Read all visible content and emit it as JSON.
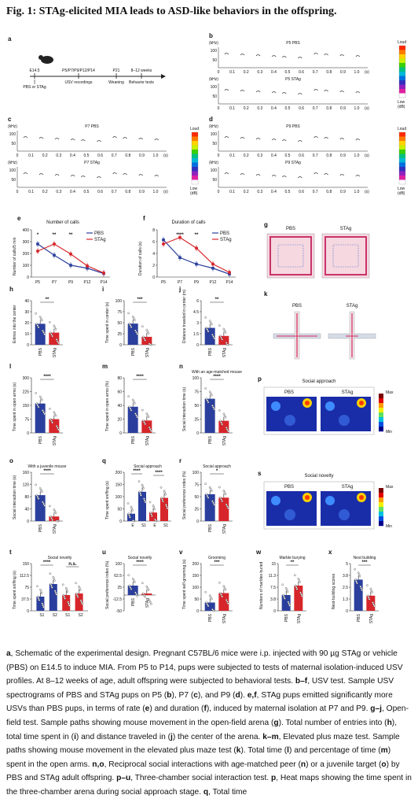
{
  "title": "Fig. 1: STAg-elicited MIA leads to ASD-like behaviors in the offspring.",
  "panels": {
    "a": {
      "label": "a",
      "timeline": [
        "E14.5",
        "P5/P7/P9/P12/P14",
        "P21",
        "8–12 weeks"
      ],
      "below": [
        "PBS or STAg",
        "USV recordings",
        "Weaning",
        "Behavior tests"
      ]
    },
    "b": {
      "label": "b",
      "top": "P5 PBS",
      "bottom": "P5 STAg"
    },
    "c": {
      "label": "c",
      "top": "P7 PBS",
      "bottom": "P7 STAg"
    },
    "d": {
      "label": "d",
      "top": "P9 PBS",
      "bottom": "P9 STAg"
    },
    "e": {
      "label": "e",
      "title": "Number of calls",
      "ylabel": "Number of calls/5 min"
    },
    "f": {
      "label": "f",
      "title": "Duration of calls",
      "ylabel": "Duration of calls (s)"
    },
    "g": {
      "label": "g",
      "left": "PBS",
      "right": "STAg"
    },
    "h": {
      "label": "h",
      "ylabel": "Entries into the center",
      "sig": "**"
    },
    "i": {
      "label": "i",
      "ylabel": "Time spent in center (s)",
      "sig": "***"
    },
    "j": {
      "label": "j",
      "ylabel": "Distance traveled in center (m)",
      "sig": "**"
    },
    "k": {
      "label": "k",
      "left": "PBS",
      "right": "STAg"
    },
    "l": {
      "label": "l",
      "ylabel": "Time spent in open arms (s)",
      "sig": "****"
    },
    "m": {
      "label": "m",
      "ylabel": "Time spent in open arms (%)",
      "sig": "****"
    },
    "n": {
      "label": "n",
      "title": "With an age-matched mouse",
      "ylabel": "Social interaction time (s)",
      "sig": "****"
    },
    "p": {
      "label": "p",
      "title": "Social approach",
      "left": "PBS",
      "right": "STAg",
      "max": "Max",
      "min": "Min"
    },
    "o": {
      "label": "o",
      "title": "With a juvenile mouse",
      "ylabel": "Social interaction time (s)",
      "sig": "****"
    },
    "q": {
      "label": "q",
      "title": "Social approach",
      "ylabel": "Time spent sniffing (s)",
      "sig1": "****",
      "sig2": "****"
    },
    "r": {
      "label": "r",
      "title": "Social approach",
      "ylabel": "Social preference index (%)",
      "sig": "*"
    },
    "s": {
      "label": "s",
      "title": "Social novelty",
      "left": "PBS",
      "right": "STAg",
      "max": "Max",
      "min": "Min"
    },
    "t": {
      "label": "t",
      "title": "Social novelty",
      "ylabel": "Time spent sniffing (s)",
      "sig1": "****",
      "sig2": "n.s."
    },
    "u": {
      "label": "u",
      "title": "Social novelty",
      "ylabel": "Social preference index (%)",
      "sig": "****"
    },
    "v": {
      "label": "v",
      "title": "Grooming",
      "ylabel": "Time spent self-grooming (s)",
      "sig": "***"
    },
    "w": {
      "label": "w",
      "title": "Marble burying",
      "ylabel": "Numbers of marbles buried",
      "sig": "**"
    },
    "x": {
      "label": "x",
      "title": "Nest building",
      "ylabel": "Nest-building scores",
      "sig": "***"
    }
  },
  "common": {
    "pbs": "PBS",
    "stag": "STAg",
    "loud": "Loud",
    "low": "Low",
    "db": "(dB)",
    "khz": "(kHz)",
    "s1": "S1",
    "s2": "S2",
    "e": "E",
    "scale": "(s)"
  },
  "colors": {
    "pbs": "#2a3f9d",
    "stag": "#d7262b"
  },
  "chart_data": [
    {
      "type": "line",
      "panel": "e",
      "title": "Number of calls",
      "x": [
        "P5",
        "P7",
        "P9",
        "P12",
        "P14"
      ],
      "ylabel": "Number of calls/5 min",
      "ylim": [
        0,
        400
      ],
      "series": [
        {
          "name": "PBS",
          "values": [
            280,
            185,
            100,
            75,
            30
          ]
        },
        {
          "name": "STAg",
          "values": [
            220,
            280,
            195,
            95,
            35
          ]
        }
      ]
    },
    {
      "type": "line",
      "panel": "f",
      "title": "Duration of calls",
      "x": [
        "P5",
        "P7",
        "P9",
        "P12",
        "P14"
      ],
      "ylabel": "Duration of calls (s)",
      "ylim": [
        0,
        8
      ],
      "series": [
        {
          "name": "PBS",
          "values": [
            6.3,
            3.3,
            2.2,
            1.5,
            0.5
          ]
        },
        {
          "name": "STAg",
          "values": [
            5.6,
            6.7,
            4.9,
            2.2,
            0.8
          ]
        }
      ]
    },
    {
      "type": "bar",
      "panel": "h",
      "categories": [
        "PBS",
        "STAg"
      ],
      "values": [
        19,
        11
      ],
      "ylim": [
        0,
        40
      ]
    },
    {
      "type": "bar",
      "panel": "i",
      "categories": [
        "PBS",
        "STAg"
      ],
      "values": [
        48,
        18
      ],
      "ylim": [
        0,
        100
      ]
    },
    {
      "type": "bar",
      "panel": "j",
      "categories": [
        "PBS",
        "STAg"
      ],
      "values": [
        2.3,
        1.2
      ],
      "ylim": [
        0,
        6
      ]
    },
    {
      "type": "bar",
      "panel": "l",
      "categories": [
        "PBS",
        "STAg"
      ],
      "values": [
        160,
        75
      ],
      "ylim": [
        0,
        300
      ]
    },
    {
      "type": "bar",
      "panel": "m",
      "categories": [
        "PBS",
        "STAg"
      ],
      "values": [
        38,
        18
      ],
      "ylim": [
        0,
        80
      ]
    },
    {
      "type": "bar",
      "panel": "n",
      "categories": [
        "PBS",
        "STAg"
      ],
      "values": [
        62,
        22
      ],
      "ylim": [
        0,
        100
      ]
    },
    {
      "type": "bar",
      "panel": "o",
      "categories": [
        "PBS",
        "STAg"
      ],
      "values": [
        85,
        15
      ],
      "ylim": [
        0,
        160
      ]
    },
    {
      "type": "bar",
      "panel": "q",
      "categories": [
        "E",
        "S1",
        "E",
        "S1"
      ],
      "values": [
        30,
        120,
        35,
        95
      ],
      "ylim": [
        0,
        200
      ]
    },
    {
      "type": "bar",
      "panel": "r",
      "categories": [
        "PBS",
        "STAg"
      ],
      "values": [
        55,
        48
      ],
      "ylim": [
        0,
        100
      ]
    },
    {
      "type": "bar",
      "panel": "t",
      "categories": [
        "S1",
        "S2",
        "S1",
        "S2"
      ],
      "values": [
        45,
        85,
        50,
        55
      ],
      "ylim": [
        0,
        150
      ]
    },
    {
      "type": "bar",
      "panel": "u",
      "categories": [
        "PBS",
        "STAg"
      ],
      "values": [
        30,
        5
      ],
      "ylim": [
        -50,
        100
      ]
    },
    {
      "type": "bar",
      "panel": "v",
      "categories": [
        "PBS",
        "STAg"
      ],
      "values": [
        35,
        75
      ],
      "ylim": [
        0,
        200
      ]
    },
    {
      "type": "bar",
      "panel": "w",
      "categories": [
        "PBS",
        "STAg"
      ],
      "values": [
        5,
        8
      ],
      "ylim": [
        0,
        15
      ]
    },
    {
      "type": "bar",
      "panel": "x",
      "categories": [
        "PBS",
        "STAg"
      ],
      "values": [
        3.3,
        1.6
      ],
      "ylim": [
        0,
        5
      ]
    }
  ],
  "caption": [
    {
      "b": "a",
      "t": ", Schematic of the experimental design. Pregnant C57BL/6 mice were i.p. injected with 90 µg STAg or vehicle (PBS) on E14.5 to induce MIA. From P5 to P14, pups were subjected to tests of maternal isolation-induced USV profiles. At 8–12 weeks of age, adult offspring were subjected to behavioral tests. "
    },
    {
      "b": "b–f",
      "t": ", USV test. Sample USV spectrograms of PBS and STAg pups on P5 ("
    },
    {
      "b": "b",
      "t": "), P7 ("
    },
    {
      "b": "c",
      "t": "), and P9 ("
    },
    {
      "b": "d",
      "t": "). "
    },
    {
      "b": "e,f",
      "t": ", STAg pups emitted significantly more USVs than PBS pups, in terms of rate ("
    },
    {
      "b": "e",
      "t": ") and duration ("
    },
    {
      "b": "f",
      "t": "), induced by maternal isolation at P7 and P9. "
    },
    {
      "b": "g–j",
      "t": ", Open-field test. Sample paths showing mouse movement in the open-field arena ("
    },
    {
      "b": "g",
      "t": "). Total number of entries into ("
    },
    {
      "b": "h",
      "t": "), total time spent in ("
    },
    {
      "b": "i",
      "t": ") and distance traveled in ("
    },
    {
      "b": "j",
      "t": ") the center of the arena. "
    },
    {
      "b": "k–m",
      "t": ", Elevated plus maze test. Sample paths showing mouse movement in the elevated plus maze test ("
    },
    {
      "b": "k",
      "t": "). Total time ("
    },
    {
      "b": "l",
      "t": ") and percentage of time ("
    },
    {
      "b": "m",
      "t": ") spent in the open arms. "
    },
    {
      "b": "n,o",
      "t": ", Reciprocal social interactions with age-matched peer ("
    },
    {
      "b": "n",
      "t": ") or a juvenile target ("
    },
    {
      "b": "o",
      "t": ") by PBS and STAg adult offspring. "
    },
    {
      "b": "p–u",
      "t": ", Three-chamber social interaction test. "
    },
    {
      "b": "p",
      "t": ", Heat maps showing the time spent in the three-chamber arena during social approach stage. "
    },
    {
      "b": "q",
      "t": ", Total time"
    }
  ]
}
